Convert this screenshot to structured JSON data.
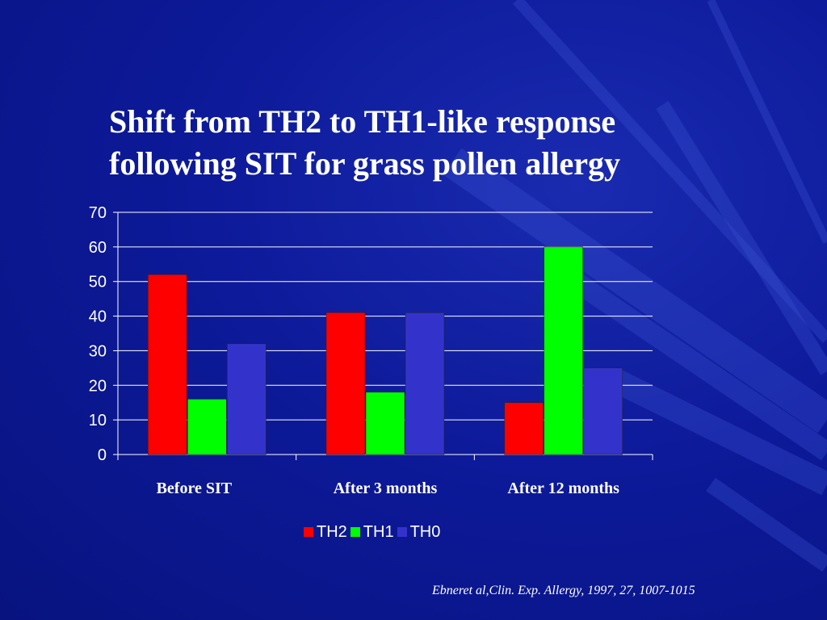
{
  "slide": {
    "title_line1": "Shift from TH2 to TH1-like response",
    "title_line2": "following SIT for grass pollen allergy",
    "citation": "Ebneret al,Clin. Exp. Allergy, 1997, 27, 1007-1015"
  },
  "chart_data": {
    "type": "bar",
    "categories": [
      "Before SIT",
      "After 3 months",
      "After 12 months"
    ],
    "series": [
      {
        "name": "TH2",
        "color": "#ff0000",
        "values": [
          52,
          41,
          15
        ]
      },
      {
        "name": "TH1",
        "color": "#00ff00",
        "values": [
          16,
          18,
          60
        ]
      },
      {
        "name": "TH0",
        "color": "#3333cc",
        "values": [
          32,
          41,
          25
        ]
      }
    ],
    "yticks": [
      0,
      10,
      20,
      30,
      40,
      50,
      60,
      70
    ],
    "ylim": [
      0,
      70
    ],
    "grid": true,
    "legend_position": "bottom"
  },
  "colors": {
    "background": "#0d1a9a",
    "text": "#ffffff"
  }
}
